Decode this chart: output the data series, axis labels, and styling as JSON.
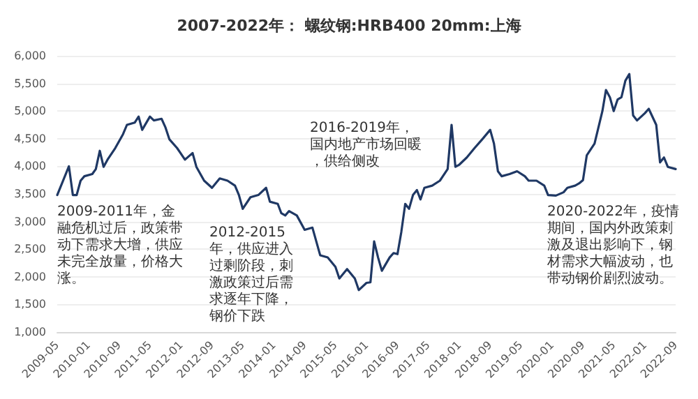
{
  "chart_data": {
    "type": "line",
    "title": "2007-2022年： 螺纹钢:HRB400 20mm:上海",
    "x": [
      "2009-05",
      "2009-08",
      "2009-09",
      "2009-10",
      "2009-11",
      "2009-12",
      "2010-02",
      "2010-03",
      "2010-04",
      "2010-05",
      "2010-06",
      "2010-08",
      "2010-10",
      "2010-11",
      "2011-01",
      "2011-02",
      "2011-03",
      "2011-05",
      "2011-06",
      "2011-08",
      "2011-09",
      "2011-10",
      "2011-12",
      "2012-02",
      "2012-04",
      "2012-05",
      "2012-07",
      "2012-09",
      "2012-11",
      "2013-01",
      "2013-03",
      "2013-04",
      "2013-05",
      "2013-07",
      "2013-09",
      "2013-11",
      "2013-12",
      "2014-02",
      "2014-03",
      "2014-04",
      "2014-05",
      "2014-07",
      "2014-09",
      "2014-11",
      "2015-01",
      "2015-03",
      "2015-05",
      "2015-06",
      "2015-08",
      "2015-10",
      "2015-11",
      "2016-01",
      "2016-02",
      "2016-03",
      "2016-04",
      "2016-05",
      "2016-07",
      "2016-08",
      "2016-09",
      "2016-10",
      "2016-11",
      "2016-12",
      "2017-01",
      "2017-02",
      "2017-03",
      "2017-04",
      "2017-06",
      "2017-08",
      "2017-10",
      "2017-11",
      "2017-12",
      "2018-01",
      "2018-03",
      "2018-05",
      "2018-07",
      "2018-09",
      "2018-10",
      "2018-11",
      "2018-12",
      "2019-02",
      "2019-04",
      "2019-06",
      "2019-07",
      "2019-09",
      "2019-11",
      "2019-12",
      "2020-02",
      "2020-04",
      "2020-05",
      "2020-07",
      "2020-08",
      "2020-09",
      "2020-10",
      "2020-12",
      "2021-02",
      "2021-03",
      "2021-04",
      "2021-05",
      "2021-06",
      "2021-07",
      "2021-08",
      "2021-09",
      "2021-10",
      "2021-11",
      "2022-01",
      "2022-02",
      "2022-04",
      "2022-05",
      "2022-06",
      "2022-07",
      "2022-09"
    ],
    "series": [
      {
        "color": "#1f3864",
        "values": [
          3480,
          4000,
          3480,
          3480,
          3740,
          3820,
          3860,
          3950,
          4280,
          3990,
          4120,
          4330,
          4580,
          4750,
          4790,
          4900,
          4660,
          4900,
          4830,
          4860,
          4700,
          4490,
          4330,
          4120,
          4240,
          3990,
          3740,
          3610,
          3780,
          3740,
          3650,
          3480,
          3230,
          3440,
          3480,
          3610,
          3360,
          3320,
          3150,
          3110,
          3190,
          3110,
          2850,
          2890,
          2390,
          2350,
          2180,
          1970,
          2140,
          1970,
          1760,
          1890,
          1900,
          2640,
          2350,
          2110,
          2350,
          2430,
          2410,
          2810,
          3320,
          3230,
          3480,
          3570,
          3400,
          3610,
          3650,
          3740,
          3950,
          4750,
          3990,
          4030,
          4160,
          4330,
          4490,
          4660,
          4410,
          3910,
          3820,
          3860,
          3910,
          3820,
          3740,
          3740,
          3650,
          3480,
          3470,
          3530,
          3610,
          3650,
          3690,
          3750,
          4200,
          4410,
          5000,
          5380,
          5250,
          5000,
          5210,
          5250,
          5550,
          5670,
          4920,
          4830,
          4960,
          5040,
          4750,
          4070,
          4160,
          3990,
          3950
        ]
      }
    ],
    "xlim": [
      "2009-05",
      "2022-09"
    ],
    "xticks": [
      "2009-05",
      "2010-01",
      "2010-09",
      "2011-05",
      "2012-01",
      "2012-09",
      "2013-05",
      "2014-01",
      "2014-09",
      "2015-05",
      "2016-01",
      "2016-09",
      "2017-05",
      "2018-01",
      "2018-09",
      "2019-05",
      "2020-01",
      "2020-09",
      "2021-05",
      "2022-01",
      "2022-09"
    ],
    "ylim": [
      1000,
      6000
    ],
    "yticks": [
      {
        "value": 1000,
        "label": "1,000"
      },
      {
        "value": 1500,
        "label": "1,500"
      },
      {
        "value": 2000,
        "label": "2,000"
      },
      {
        "value": 2500,
        "label": "2,500"
      },
      {
        "value": 3000,
        "label": "3,000"
      },
      {
        "value": 3500,
        "label": "3,500"
      },
      {
        "value": 4000,
        "label": "4,000"
      },
      {
        "value": 4500,
        "label": "4,500"
      },
      {
        "value": 5000,
        "label": "5,000"
      },
      {
        "value": 5500,
        "label": "5,500"
      },
      {
        "value": 6000,
        "label": "6,000"
      }
    ],
    "grid": "y",
    "marker": "none",
    "line_style": "solid",
    "annotations": [
      "2009-2011年，金融危机过后，政策带动下需求大增，供应未完全放量，价格大涨。",
      "2012-2015年，供应进入过剩阶段，刺激政策过后需求逐年下降，钢价下跌",
      "2016-2019年，国内地产市场回暖，供给侧改",
      "2020-2022年，疫情期间，国内外政策刺激及退出影响下，钢材需求大幅波动，也带动钢价剧烈波动。"
    ]
  }
}
